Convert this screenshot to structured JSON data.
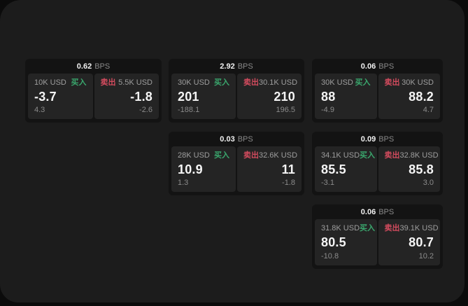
{
  "labels": {
    "buy": "买入",
    "sell": "卖出",
    "bps_unit": "BPS"
  },
  "colors": {
    "buy_green": "#3aa76d",
    "sell_red": "#d34b5e",
    "page_bg": "#1c1c1c",
    "card_bg": "#131313",
    "panel_bg": "#242424"
  },
  "cards": [
    {
      "bps": "0.62",
      "buy": {
        "amount": "10K USD",
        "price": "-3.7",
        "change": "4.3"
      },
      "sell": {
        "amount": "5.5K USD",
        "price": "-1.8",
        "change": "-2.6"
      }
    },
    {
      "bps": "2.92",
      "buy": {
        "amount": "30K USD",
        "price": "201",
        "change": "-188.1"
      },
      "sell": {
        "amount": "30.1K USD",
        "price": "210",
        "change": "196.5"
      }
    },
    {
      "bps": "0.06",
      "buy": {
        "amount": "30K USD",
        "price": "88",
        "change": "-4.9"
      },
      "sell": {
        "amount": "30K USD",
        "price": "88.2",
        "change": "4.7"
      }
    },
    {
      "bps": "0.03",
      "buy": {
        "amount": "28K USD",
        "price": "10.9",
        "change": "1.3"
      },
      "sell": {
        "amount": "32.6K USD",
        "price": "11",
        "change": "-1.8"
      }
    },
    {
      "bps": "0.09",
      "buy": {
        "amount": "34.1K USD",
        "price": "85.5",
        "change": "-3.1"
      },
      "sell": {
        "amount": "32.8K USD",
        "price": "85.8",
        "change": "3.0"
      }
    },
    {
      "bps": "0.06",
      "buy": {
        "amount": "31.8K USD",
        "price": "80.5",
        "change": "-10.8"
      },
      "sell": {
        "amount": "39.1K USD",
        "price": "80.7",
        "change": "10.2"
      }
    }
  ]
}
